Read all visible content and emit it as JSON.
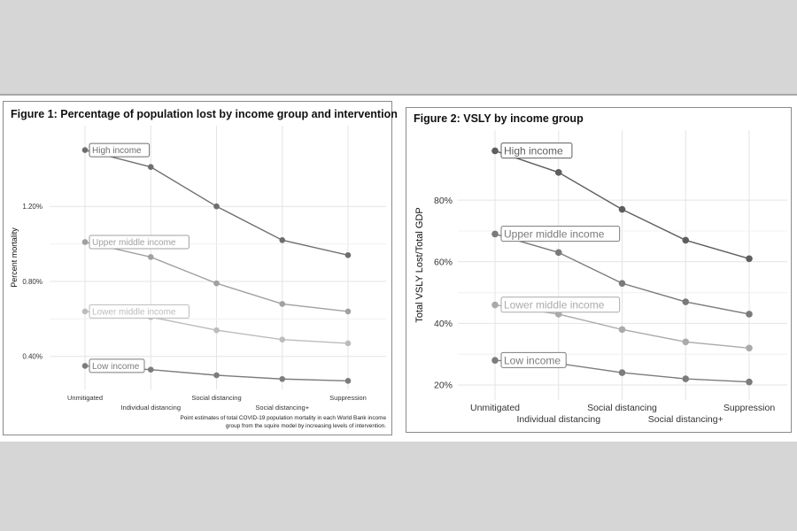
{
  "colors": {
    "background": "#d6d6d6",
    "panel": "#ffffff",
    "grid": "#e4e4e4",
    "text": "#222222",
    "series": [
      "#6e6e6e",
      "#a0a0a0",
      "#bcbcbc",
      "#7c7c7c"
    ],
    "series_fig2": [
      "#5e5e5e",
      "#7a7a7a",
      "#aaaaaa",
      "#7c7c7c"
    ]
  },
  "chart_data": [
    {
      "type": "line",
      "title": "Figure 1: Percentage of population lost by income group and intervention",
      "xlabel": "",
      "ylabel": "Percent mortality",
      "categories": [
        "Unmitigated",
        "Individual distancing",
        "Social distancing",
        "Social distancing+",
        "Suppression"
      ],
      "yticks": [
        0.4,
        0.8,
        1.2
      ],
      "ytick_labels": [
        "0.40%",
        "0.80%",
        "1.20%"
      ],
      "ylim": [
        0.3,
        1.55
      ],
      "grid": true,
      "caption": [
        "Point estimates of total COVID-19 population mortality in each World Bank income",
        "group from the squire model by increasing levels of intervention."
      ],
      "series": [
        {
          "name": "High income",
          "values": [
            1.5,
            1.41,
            1.2,
            1.02,
            0.94
          ]
        },
        {
          "name": "Upper middle income",
          "values": [
            1.01,
            0.93,
            0.79,
            0.68,
            0.64
          ]
        },
        {
          "name": "Lower middle income",
          "values": [
            0.64,
            0.61,
            0.54,
            0.49,
            0.47
          ]
        },
        {
          "name": "Low income",
          "values": [
            0.35,
            0.33,
            0.3,
            0.28,
            0.27
          ]
        }
      ]
    },
    {
      "type": "line",
      "title": "Figure 2: VSLY by income group",
      "xlabel": "",
      "ylabel": "Total VSLY Lost/Total GDP",
      "categories": [
        "Unmitigated",
        "Individual distancing",
        "Social distancing",
        "Social distancing+",
        "Suppression"
      ],
      "yticks": [
        20,
        40,
        60,
        80
      ],
      "ytick_labels": [
        "20%",
        "40%",
        "60%",
        "80%"
      ],
      "ylim": [
        18,
        99
      ],
      "grid": true,
      "series": [
        {
          "name": "High income",
          "values": [
            96,
            89,
            77,
            67,
            61
          ]
        },
        {
          "name": "Upper middle income",
          "values": [
            69,
            63,
            53,
            47,
            43
          ]
        },
        {
          "name": "Lower middle income",
          "values": [
            46,
            43,
            38,
            34,
            32
          ]
        },
        {
          "name": "Low income",
          "values": [
            28,
            27,
            24,
            22,
            21
          ]
        }
      ]
    }
  ]
}
